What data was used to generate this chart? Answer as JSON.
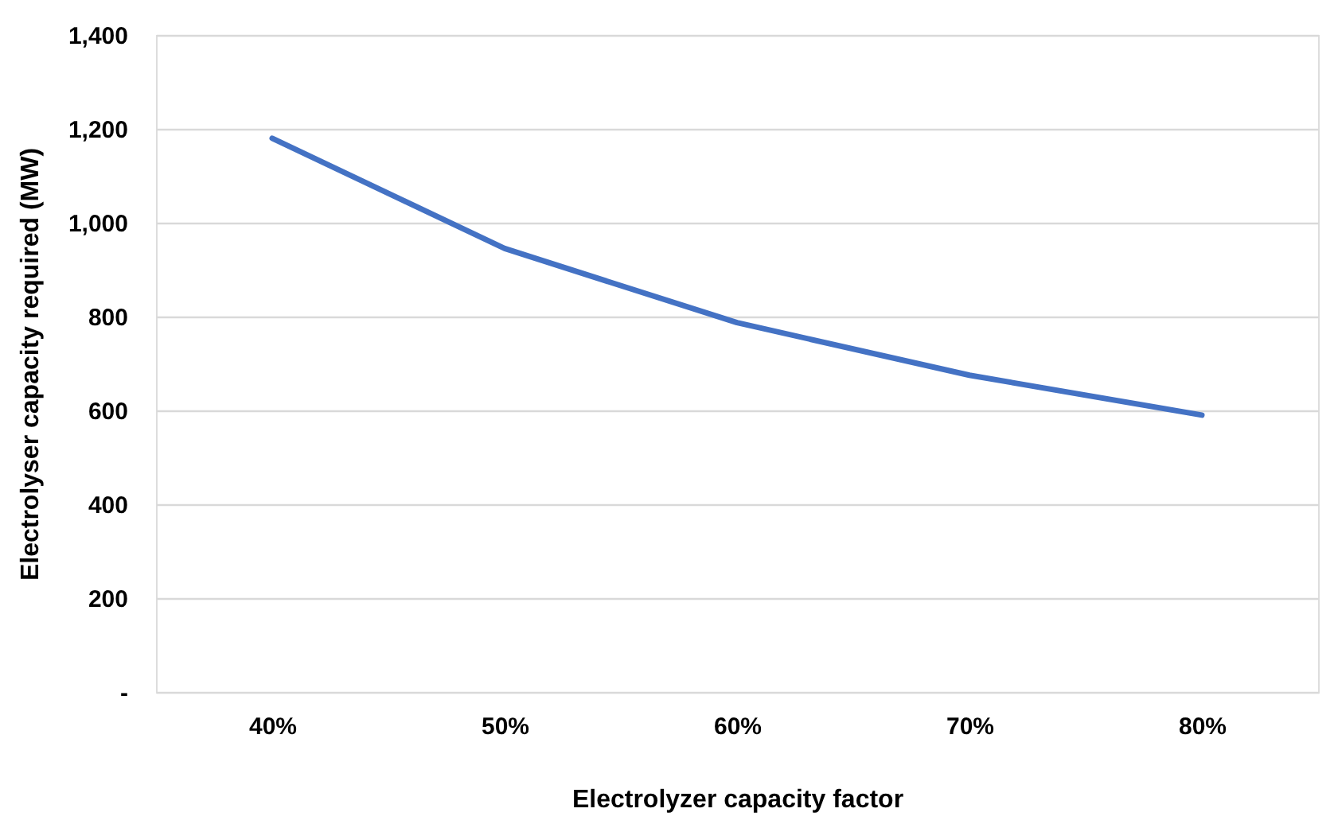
{
  "chart_data": {
    "type": "line",
    "xlabel": "Electrolyzer capacity factor",
    "ylabel": "Electrolyser capacity required (MW)",
    "categories": [
      "40%",
      "50%",
      "60%",
      "70%",
      "80%"
    ],
    "series": [
      {
        "color": "#4472c4",
        "values": [
          1180,
          945,
          787,
          675,
          590
        ]
      }
    ],
    "ylim": [
      0,
      1400
    ],
    "yticks": [
      {
        "value": 0,
        "label": "-"
      },
      {
        "value": 200,
        "label": "200"
      },
      {
        "value": 400,
        "label": "400"
      },
      {
        "value": 600,
        "label": "600"
      },
      {
        "value": 800,
        "label": "800"
      },
      {
        "value": 1000,
        "label": "1,000"
      },
      {
        "value": 1200,
        "label": "1,200"
      },
      {
        "value": 1400,
        "label": "1,400"
      }
    ],
    "grid": "y",
    "marker": "none",
    "line_style": "solid"
  }
}
